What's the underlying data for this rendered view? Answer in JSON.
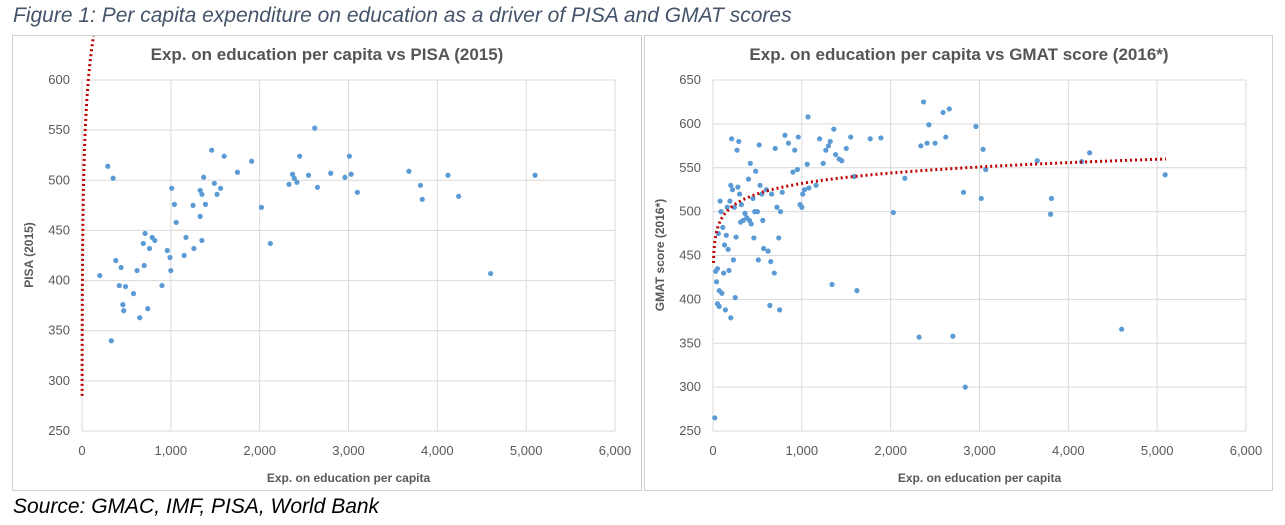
{
  "figure_caption": "Figure 1: Per capita expenditure on education as a driver of PISA and GMAT scores",
  "source_caption": "Source: GMAC, IMF, PISA, World Bank",
  "colors": {
    "points": "#5b9bd5",
    "trendline": "#c00000",
    "caption": "#44546a",
    "grid": "#d9d9d9"
  },
  "chart_data": [
    {
      "type": "scatter",
      "title": "Exp. on education per capita vs PISA (2015)",
      "xlabel": "Exp. on education per capita",
      "ylabel": "PISA (2015)",
      "xlim": [
        0,
        6000
      ],
      "ylim": [
        250,
        600
      ],
      "xticks": [
        0,
        1000,
        2000,
        3000,
        4000,
        5000,
        6000
      ],
      "xtick_labels": [
        "0",
        "1,000",
        "2,000",
        "3,000",
        "4,000",
        "5,000",
        "6,000"
      ],
      "yticks": [
        250,
        300,
        350,
        400,
        450,
        500,
        550,
        600
      ],
      "ytick_labels": [
        "250",
        "300",
        "350",
        "400",
        "450",
        "500",
        "550",
        "600"
      ],
      "grid": true,
      "trendline": {
        "type": "logarithmic",
        "a": 73.8,
        "b": 285,
        "x_start": 1,
        "x_end": 5100
      },
      "points": [
        [
          200,
          405
        ],
        [
          290,
          514
        ],
        [
          330,
          340
        ],
        [
          350,
          502
        ],
        [
          380,
          420
        ],
        [
          420,
          395
        ],
        [
          440,
          413
        ],
        [
          460,
          376
        ],
        [
          470,
          370
        ],
        [
          490,
          394
        ],
        [
          580,
          387
        ],
        [
          620,
          410
        ],
        [
          650,
          363
        ],
        [
          690,
          437
        ],
        [
          700,
          415
        ],
        [
          710,
          447
        ],
        [
          740,
          372
        ],
        [
          760,
          432
        ],
        [
          790,
          443
        ],
        [
          820,
          440
        ],
        [
          900,
          395
        ],
        [
          960,
          430
        ],
        [
          990,
          423
        ],
        [
          1000,
          410
        ],
        [
          1010,
          492
        ],
        [
          1040,
          476
        ],
        [
          1060,
          458
        ],
        [
          1150,
          425
        ],
        [
          1170,
          443
        ],
        [
          1250,
          475
        ],
        [
          1260,
          432
        ],
        [
          1330,
          490
        ],
        [
          1330,
          464
        ],
        [
          1350,
          440
        ],
        [
          1350,
          486
        ],
        [
          1370,
          503
        ],
        [
          1390,
          476
        ],
        [
          1460,
          530
        ],
        [
          1490,
          497
        ],
        [
          1520,
          486
        ],
        [
          1560,
          492
        ],
        [
          1600,
          524
        ],
        [
          1750,
          508
        ],
        [
          1910,
          519
        ],
        [
          2020,
          473
        ],
        [
          2120,
          437
        ],
        [
          2330,
          496
        ],
        [
          2370,
          506
        ],
        [
          2390,
          502
        ],
        [
          2420,
          498
        ],
        [
          2450,
          524
        ],
        [
          2550,
          505
        ],
        [
          2620,
          552
        ],
        [
          2650,
          493
        ],
        [
          2800,
          507
        ],
        [
          2960,
          503
        ],
        [
          3010,
          524
        ],
        [
          3030,
          506
        ],
        [
          3100,
          488
        ],
        [
          3680,
          509
        ],
        [
          3810,
          495
        ],
        [
          3830,
          481
        ],
        [
          4120,
          505
        ],
        [
          4240,
          484
        ],
        [
          4600,
          407
        ],
        [
          5100,
          505
        ]
      ]
    },
    {
      "type": "scatter",
      "title": "Exp. on education per capita vs GMAT score (2016*)",
      "xlabel": "Exp. on education per capita",
      "ylabel": "GMAT score (2016*)",
      "xlim": [
        0,
        6000
      ],
      "ylim": [
        250,
        650
      ],
      "xticks": [
        0,
        1000,
        2000,
        3000,
        4000,
        5000,
        6000
      ],
      "xtick_labels": [
        "0",
        "1,000",
        "2,000",
        "3,000",
        "4,000",
        "5,000",
        "6,000"
      ],
      "yticks": [
        250,
        300,
        350,
        400,
        450,
        500,
        550,
        600,
        650
      ],
      "ytick_labels": [
        "250",
        "300",
        "350",
        "400",
        "450",
        "500",
        "550",
        "600",
        "650"
      ],
      "grid": true,
      "trendline": {
        "type": "logarithmic",
        "a": 17.1,
        "b": 414,
        "x_start": 5,
        "x_end": 5100
      },
      "points": [
        [
          20,
          265
        ],
        [
          30,
          432
        ],
        [
          40,
          420
        ],
        [
          50,
          435
        ],
        [
          50,
          395
        ],
        [
          60,
          475
        ],
        [
          70,
          410
        ],
        [
          70,
          392
        ],
        [
          80,
          512
        ],
        [
          90,
          500
        ],
        [
          100,
          407
        ],
        [
          110,
          482
        ],
        [
          120,
          430
        ],
        [
          130,
          462
        ],
        [
          140,
          388
        ],
        [
          150,
          473
        ],
        [
          160,
          505
        ],
        [
          170,
          457
        ],
        [
          180,
          433
        ],
        [
          190,
          512
        ],
        [
          200,
          530
        ],
        [
          200,
          379
        ],
        [
          210,
          583
        ],
        [
          220,
          525
        ],
        [
          230,
          445
        ],
        [
          240,
          505
        ],
        [
          250,
          402
        ],
        [
          260,
          471
        ],
        [
          270,
          570
        ],
        [
          280,
          528
        ],
        [
          290,
          580
        ],
        [
          300,
          520
        ],
        [
          310,
          488
        ],
        [
          320,
          508
        ],
        [
          340,
          490
        ],
        [
          360,
          498
        ],
        [
          380,
          493
        ],
        [
          400,
          537
        ],
        [
          410,
          490
        ],
        [
          420,
          555
        ],
        [
          430,
          486
        ],
        [
          450,
          515
        ],
        [
          460,
          470
        ],
        [
          470,
          500
        ],
        [
          480,
          546
        ],
        [
          500,
          500
        ],
        [
          510,
          445
        ],
        [
          520,
          576
        ],
        [
          530,
          530
        ],
        [
          550,
          520
        ],
        [
          560,
          490
        ],
        [
          570,
          458
        ],
        [
          600,
          525
        ],
        [
          620,
          455
        ],
        [
          640,
          393
        ],
        [
          650,
          443
        ],
        [
          660,
          520
        ],
        [
          690,
          430
        ],
        [
          700,
          572
        ],
        [
          720,
          505
        ],
        [
          740,
          470
        ],
        [
          750,
          388
        ],
        [
          760,
          500
        ],
        [
          780,
          522
        ],
        [
          810,
          587
        ],
        [
          850,
          578
        ],
        [
          900,
          545
        ],
        [
          920,
          570
        ],
        [
          950,
          548
        ],
        [
          960,
          585
        ],
        [
          980,
          508
        ],
        [
          1000,
          505
        ],
        [
          1010,
          520
        ],
        [
          1030,
          525
        ],
        [
          1060,
          554
        ],
        [
          1070,
          608
        ],
        [
          1080,
          527
        ],
        [
          1160,
          530
        ],
        [
          1200,
          583
        ],
        [
          1240,
          555
        ],
        [
          1270,
          570
        ],
        [
          1300,
          575
        ],
        [
          1320,
          580
        ],
        [
          1340,
          417
        ],
        [
          1360,
          594
        ],
        [
          1380,
          565
        ],
        [
          1420,
          560
        ],
        [
          1450,
          558
        ],
        [
          1500,
          572
        ],
        [
          1550,
          585
        ],
        [
          1590,
          540
        ],
        [
          1620,
          410
        ],
        [
          1770,
          583
        ],
        [
          1890,
          584
        ],
        [
          2030,
          499
        ],
        [
          2160,
          538
        ],
        [
          2320,
          357
        ],
        [
          2340,
          575
        ],
        [
          2370,
          625
        ],
        [
          2410,
          578
        ],
        [
          2430,
          599
        ],
        [
          2500,
          578
        ],
        [
          2590,
          613
        ],
        [
          2620,
          585
        ],
        [
          2660,
          617
        ],
        [
          2700,
          358
        ],
        [
          2820,
          522
        ],
        [
          2840,
          300
        ],
        [
          2960,
          597
        ],
        [
          3020,
          515
        ],
        [
          3040,
          571
        ],
        [
          3070,
          548
        ],
        [
          3650,
          558
        ],
        [
          3800,
          497
        ],
        [
          3810,
          515
        ],
        [
          4150,
          557
        ],
        [
          4240,
          567
        ],
        [
          4600,
          366
        ],
        [
          5090,
          542
        ]
      ]
    }
  ]
}
